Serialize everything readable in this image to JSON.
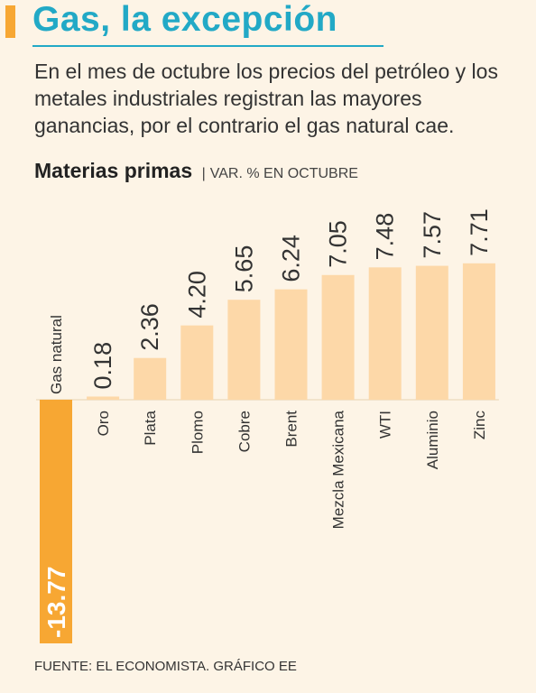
{
  "header": {
    "title": "Gas, la excepción",
    "subtitle": "En el mes de octubre los precios del petróleo y los metales industriales registran las mayores ganancias, por el contrario el gas natural cae.",
    "chart_title": "Materias primas",
    "chart_unit_separator": "|",
    "chart_unit": "VAR. % EN OCTUBRE"
  },
  "footer": {
    "source": "FUENTE: EL ECONOMISTA. GRÁFICO EE"
  },
  "colors": {
    "accent": "#f7a733",
    "title": "#22a9c6",
    "positive_bar": "#fdd8a8",
    "negative_bar": "#f7a733",
    "background": "#fdf4e6"
  },
  "chart_data": {
    "type": "bar",
    "title": "Materias primas",
    "ylabel": "VAR. % EN OCTUBRE",
    "categories": [
      "Gas natural",
      "Oro",
      "Plata",
      "Plomo",
      "Cobre",
      "Brent",
      "Mezcla Mexicana",
      "WTI",
      "Aluminio",
      "Zinc"
    ],
    "values": [
      -13.77,
      0.18,
      2.36,
      4.2,
      5.65,
      6.24,
      7.05,
      7.48,
      7.57,
      7.71
    ],
    "value_labels": [
      "-13.77",
      "0.18",
      "2.36",
      "4.20",
      "5.65",
      "6.24",
      "7.05",
      "7.48",
      "7.57",
      "7.71"
    ],
    "ylim": [
      -13.77,
      7.71
    ],
    "grid": false,
    "legend": "none"
  }
}
